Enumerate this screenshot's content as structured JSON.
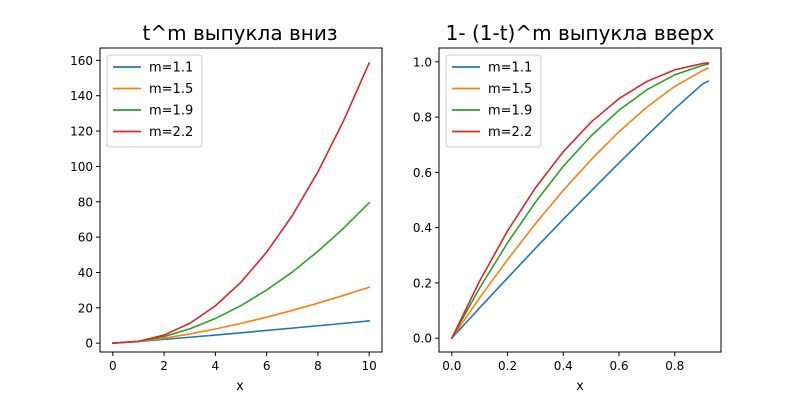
{
  "chart_data": [
    {
      "type": "line",
      "title": "t^m выпукла вниз",
      "xlabel": "x",
      "ylabel": "",
      "xlim": [
        -0.5,
        10.5
      ],
      "ylim": [
        -5,
        167
      ],
      "xticks": [
        0,
        2,
        4,
        6,
        8,
        10
      ],
      "xtick_labels": [
        "0",
        "2",
        "4",
        "6",
        "8",
        "10"
      ],
      "yticks": [
        0,
        20,
        40,
        60,
        80,
        100,
        120,
        140,
        160
      ],
      "ytick_labels": [
        "0",
        "20",
        "40",
        "60",
        "80",
        "100",
        "120",
        "140",
        "160"
      ],
      "legend_position": "upper-left",
      "series": [
        {
          "name": "m=1.1",
          "color": "#1f77b4",
          "x": [
            0,
            1,
            2,
            3,
            4,
            5,
            6,
            7,
            8,
            9,
            10
          ],
          "values": [
            0,
            1,
            2.14,
            3.35,
            4.59,
            5.87,
            7.18,
            8.51,
            9.85,
            11.2,
            12.59
          ]
        },
        {
          "name": "m=1.5",
          "color": "#ff7f0e",
          "x": [
            0,
            1,
            2,
            3,
            4,
            5,
            6,
            7,
            8,
            9,
            10
          ],
          "values": [
            0,
            1,
            2.83,
            5.2,
            8,
            11.18,
            14.7,
            18.52,
            22.63,
            27,
            31.62
          ]
        },
        {
          "name": "m=1.9",
          "color": "#2ca02c",
          "x": [
            0,
            1,
            2,
            3,
            4,
            5,
            6,
            7,
            8,
            9,
            10
          ],
          "values": [
            0,
            1,
            3.73,
            8.06,
            13.93,
            21.28,
            30.06,
            40.23,
            51.98,
            65.03,
            79.43
          ]
        },
        {
          "name": "m=2.2",
          "color": "#d62728",
          "x": [
            0,
            1,
            2,
            3,
            4,
            5,
            6,
            7,
            8,
            9,
            10
          ],
          "values": [
            0,
            1,
            4.59,
            11.21,
            21.11,
            34.49,
            51.48,
            72.17,
            96.93,
            125.8,
            158.49
          ]
        }
      ]
    },
    {
      "type": "line",
      "title": "1- (1-t)^m выпукла вверх",
      "xlabel": "x",
      "ylabel": "",
      "xlim": [
        -0.046,
        0.966
      ],
      "ylim": [
        -0.05,
        1.05
      ],
      "xticks": [
        0,
        0.2,
        0.4,
        0.6,
        0.8
      ],
      "xtick_labels": [
        "0.0",
        "0.2",
        "0.4",
        "0.6",
        "0.8"
      ],
      "yticks": [
        0,
        0.2,
        0.4,
        0.6,
        0.8,
        1.0
      ],
      "ytick_labels": [
        "0.0",
        "0.2",
        "0.4",
        "0.6",
        "0.8",
        "1.0"
      ],
      "legend_position": "upper-left",
      "series": [
        {
          "name": "m=1.1",
          "color": "#1f77b4",
          "x": [
            0,
            0.1,
            0.2,
            0.3,
            0.4,
            0.5,
            0.6,
            0.7,
            0.8,
            0.9,
            0.92
          ],
          "values": [
            0,
            0.11,
            0.218,
            0.325,
            0.43,
            0.533,
            0.634,
            0.733,
            0.83,
            0.92,
            0.93
          ]
        },
        {
          "name": "m=1.5",
          "color": "#ff7f0e",
          "x": [
            0,
            0.1,
            0.2,
            0.3,
            0.4,
            0.5,
            0.6,
            0.7,
            0.8,
            0.9,
            0.92
          ],
          "values": [
            0,
            0.146,
            0.284,
            0.414,
            0.535,
            0.646,
            0.747,
            0.836,
            0.911,
            0.968,
            0.977
          ]
        },
        {
          "name": "m=1.9",
          "color": "#2ca02c",
          "x": [
            0,
            0.1,
            0.2,
            0.3,
            0.4,
            0.5,
            0.6,
            0.7,
            0.8,
            0.9,
            0.92
          ],
          "values": [
            0,
            0.182,
            0.345,
            0.492,
            0.622,
            0.732,
            0.825,
            0.899,
            0.953,
            0.987,
            0.992
          ]
        },
        {
          "name": "m=2.2",
          "color": "#d62728",
          "x": [
            0,
            0.1,
            0.2,
            0.3,
            0.4,
            0.5,
            0.6,
            0.7,
            0.8,
            0.9,
            0.92
          ],
          "values": [
            0,
            0.207,
            0.388,
            0.544,
            0.675,
            0.782,
            0.867,
            0.929,
            0.971,
            0.994,
            0.996
          ]
        }
      ]
    }
  ]
}
